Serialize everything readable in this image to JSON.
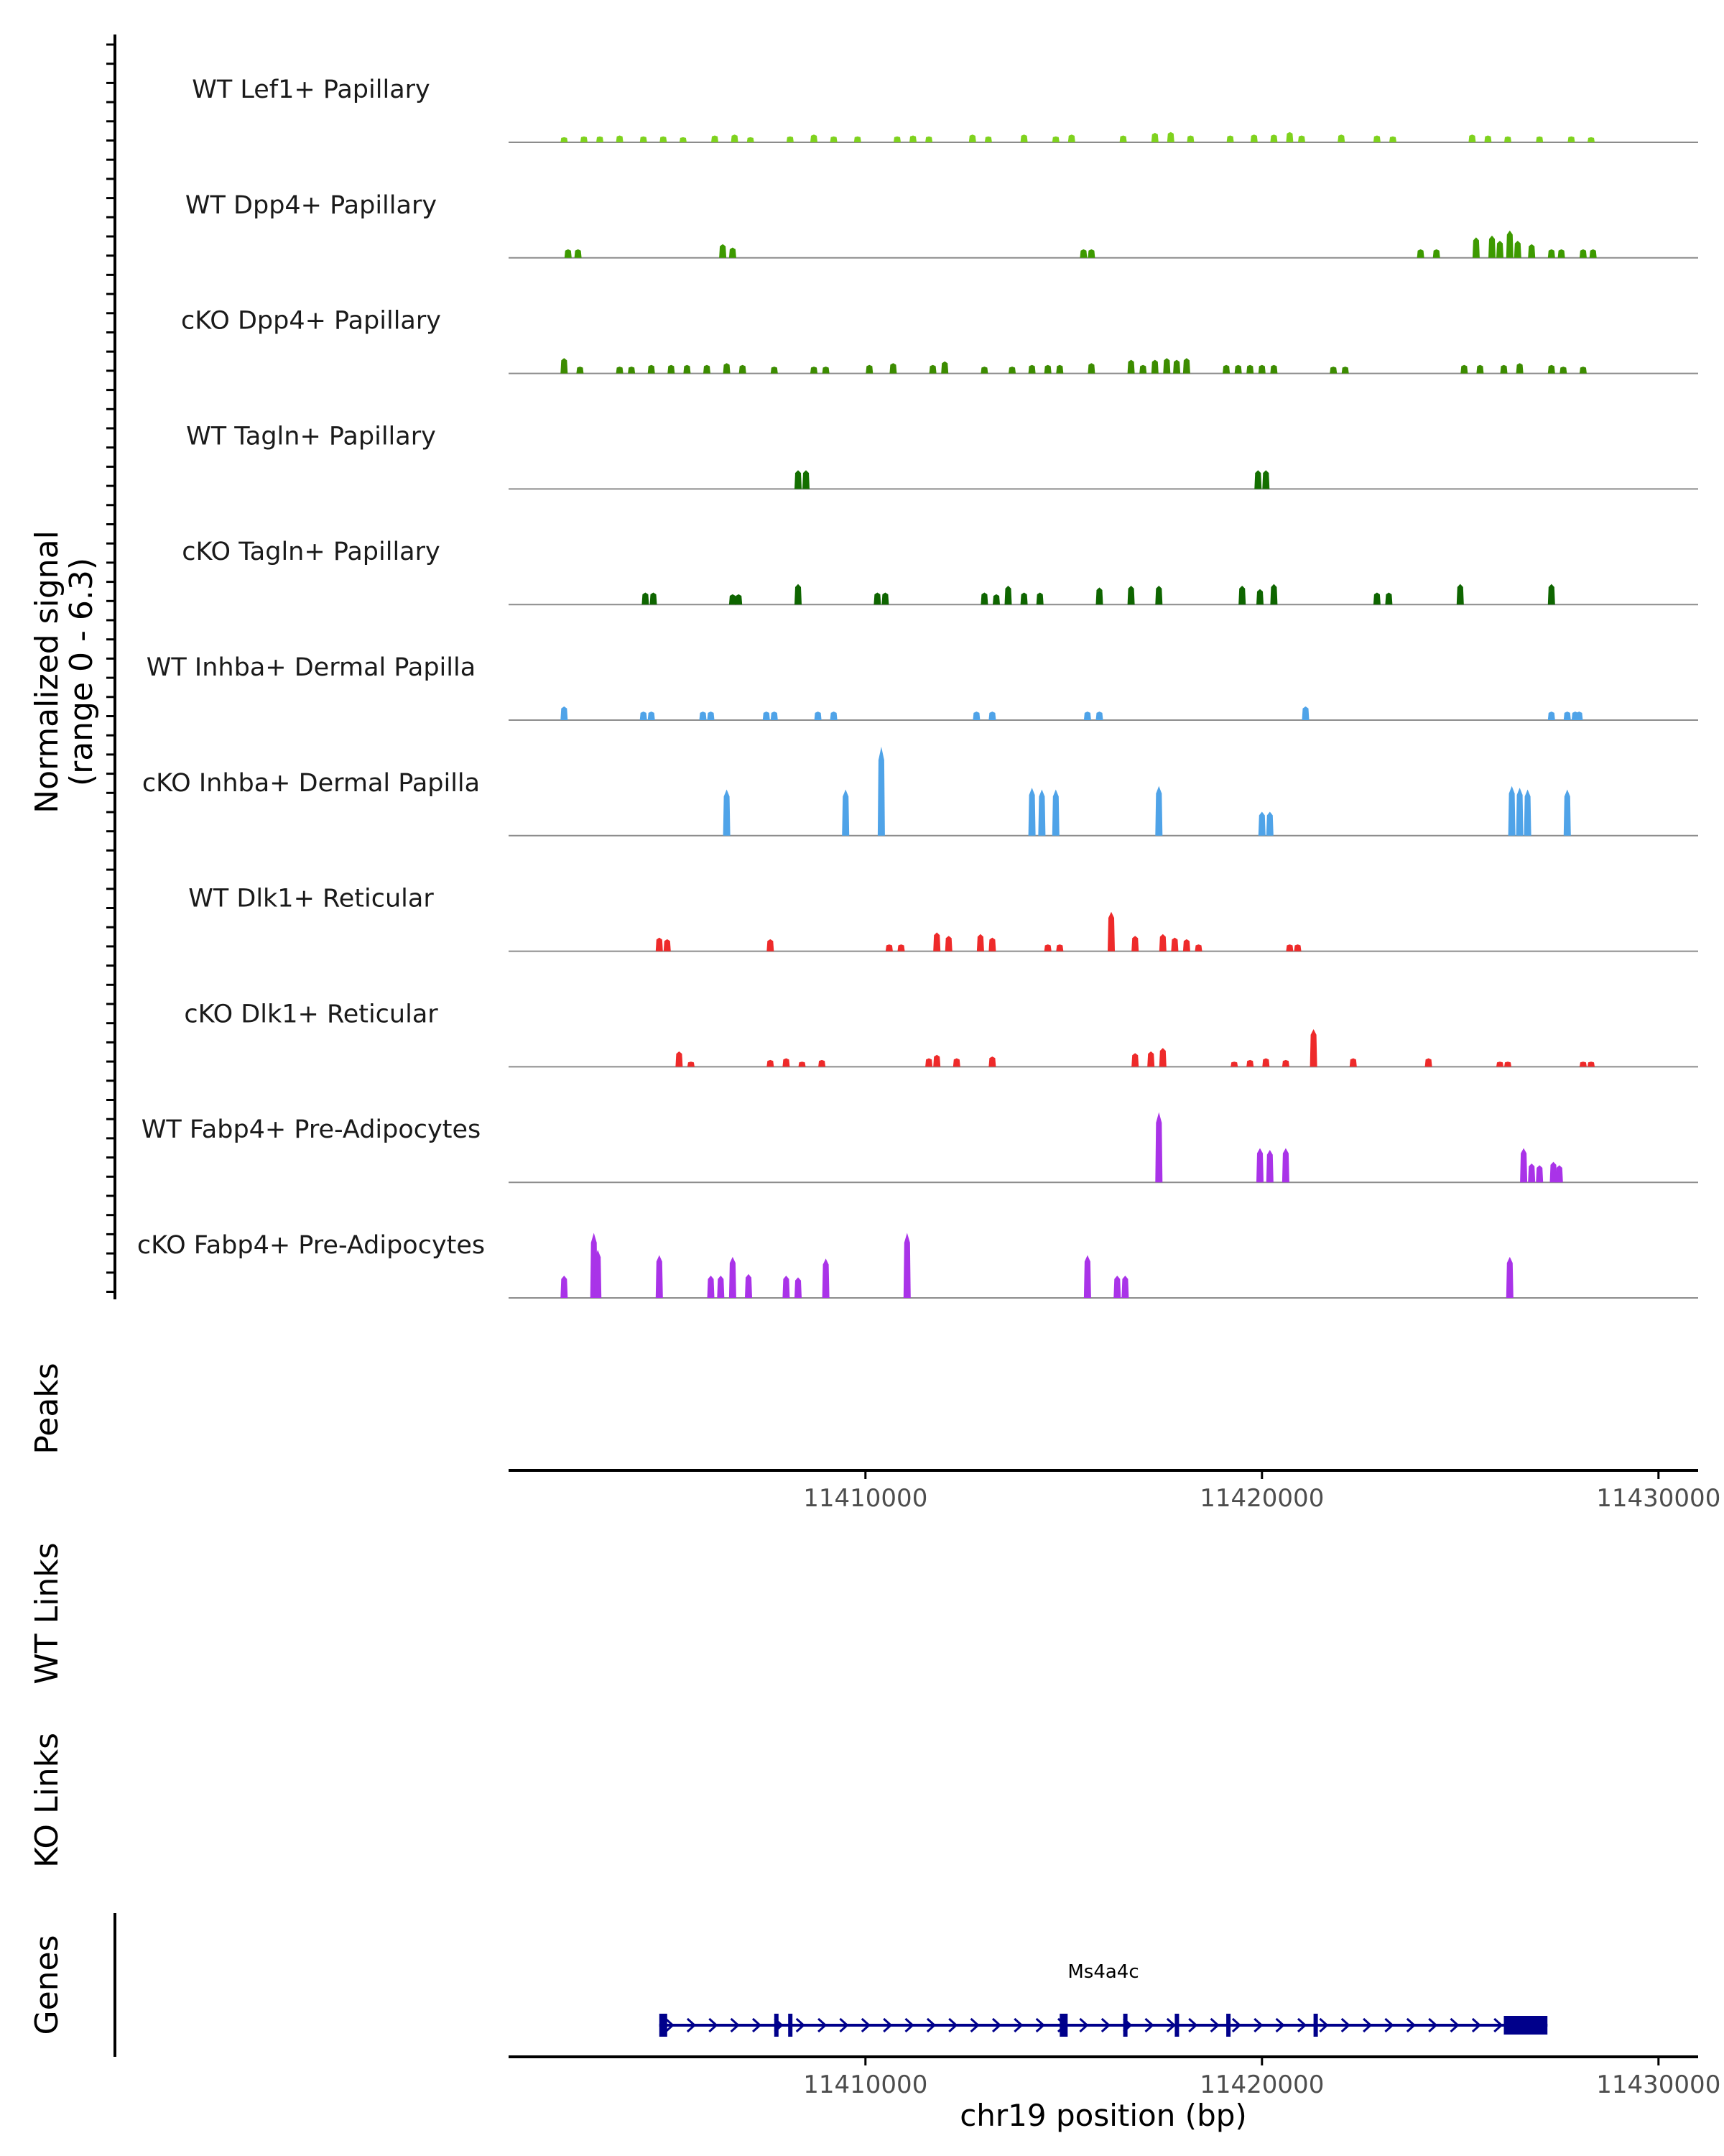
{
  "chart_data": {
    "type": "area",
    "genome": "chr19",
    "x_range": [
      11401000,
      11431000
    ],
    "y_axis_title": "Normalized signal",
    "y_axis_subtitle": "(range 0 - 6.3)",
    "y_range": [
      0,
      6.3
    ],
    "x_label": "chr19 position (bp)",
    "x_ticks": [
      11410000,
      11420000,
      11430000
    ],
    "x_tick_labels": [
      "11410000",
      "11420000",
      "11430000"
    ],
    "panel_labels": {
      "peaks": "Peaks",
      "wt_links": "WT Links",
      "ko_links": "KO Links",
      "genes": "Genes"
    },
    "tracks": [
      {
        "name": "WT Lef1+ Papillary",
        "color": "#7fd21e",
        "peaks": [
          [
            11402400,
            0.3
          ],
          [
            11402900,
            0.35
          ],
          [
            11403300,
            0.35
          ],
          [
            11403800,
            0.4
          ],
          [
            11404400,
            0.35
          ],
          [
            11404900,
            0.35
          ],
          [
            11405400,
            0.3
          ],
          [
            11406200,
            0.4
          ],
          [
            11406700,
            0.45
          ],
          [
            11407100,
            0.3
          ],
          [
            11408100,
            0.35
          ],
          [
            11408700,
            0.45
          ],
          [
            11409200,
            0.35
          ],
          [
            11409800,
            0.35
          ],
          [
            11410800,
            0.35
          ],
          [
            11411200,
            0.4
          ],
          [
            11411600,
            0.35
          ],
          [
            11412700,
            0.45
          ],
          [
            11413100,
            0.35
          ],
          [
            11414000,
            0.45
          ],
          [
            11414800,
            0.35
          ],
          [
            11415200,
            0.45
          ],
          [
            11416500,
            0.4
          ],
          [
            11417300,
            0.55
          ],
          [
            11417700,
            0.6
          ],
          [
            11418200,
            0.4
          ],
          [
            11419200,
            0.4
          ],
          [
            11419800,
            0.45
          ],
          [
            11420300,
            0.45
          ],
          [
            11420700,
            0.6
          ],
          [
            11421000,
            0.4
          ],
          [
            11422000,
            0.45
          ],
          [
            11422900,
            0.4
          ],
          [
            11423300,
            0.35
          ],
          [
            11425300,
            0.45
          ],
          [
            11425700,
            0.4
          ],
          [
            11426200,
            0.35
          ],
          [
            11427000,
            0.35
          ],
          [
            11427800,
            0.35
          ],
          [
            11428300,
            0.3
          ]
        ]
      },
      {
        "name": "WT Dpp4+ Papillary",
        "color": "#3d9a00",
        "peaks": [
          [
            11402500,
            0.5
          ],
          [
            11402750,
            0.5
          ],
          [
            11406400,
            0.8
          ],
          [
            11406650,
            0.6
          ],
          [
            11415500,
            0.5
          ],
          [
            11415700,
            0.5
          ],
          [
            11424000,
            0.5
          ],
          [
            11424400,
            0.5
          ],
          [
            11425400,
            1.2
          ],
          [
            11425800,
            1.3
          ],
          [
            11426000,
            1.0
          ],
          [
            11426250,
            1.6
          ],
          [
            11426450,
            1.0
          ],
          [
            11426800,
            0.8
          ],
          [
            11427300,
            0.5
          ],
          [
            11427550,
            0.5
          ],
          [
            11428100,
            0.5
          ],
          [
            11428350,
            0.5
          ]
        ]
      },
      {
        "name": "cKO Dpp4+ Papillary",
        "color": "#3c8c00",
        "peaks": [
          [
            11402400,
            0.9
          ],
          [
            11402800,
            0.4
          ],
          [
            11403800,
            0.4
          ],
          [
            11404100,
            0.4
          ],
          [
            11404600,
            0.5
          ],
          [
            11405100,
            0.5
          ],
          [
            11405500,
            0.5
          ],
          [
            11406000,
            0.5
          ],
          [
            11406500,
            0.6
          ],
          [
            11406900,
            0.5
          ],
          [
            11407700,
            0.4
          ],
          [
            11408700,
            0.4
          ],
          [
            11409000,
            0.4
          ],
          [
            11410100,
            0.5
          ],
          [
            11410700,
            0.6
          ],
          [
            11411700,
            0.5
          ],
          [
            11412000,
            0.7
          ],
          [
            11413000,
            0.4
          ],
          [
            11413700,
            0.4
          ],
          [
            11414200,
            0.5
          ],
          [
            11414600,
            0.5
          ],
          [
            11414900,
            0.5
          ],
          [
            11415700,
            0.6
          ],
          [
            11416700,
            0.8
          ],
          [
            11417000,
            0.5
          ],
          [
            11417300,
            0.8
          ],
          [
            11417600,
            0.9
          ],
          [
            11417850,
            0.8
          ],
          [
            11418100,
            0.9
          ],
          [
            11419100,
            0.5
          ],
          [
            11419400,
            0.5
          ],
          [
            11419700,
            0.5
          ],
          [
            11420000,
            0.5
          ],
          [
            11420300,
            0.5
          ],
          [
            11421800,
            0.4
          ],
          [
            11422100,
            0.4
          ],
          [
            11425100,
            0.5
          ],
          [
            11425500,
            0.5
          ],
          [
            11426100,
            0.5
          ],
          [
            11426500,
            0.6
          ],
          [
            11427300,
            0.5
          ],
          [
            11427600,
            0.4
          ],
          [
            11428100,
            0.4
          ]
        ]
      },
      {
        "name": "WT Tagln+ Papillary",
        "color": "#136f00",
        "peaks": [
          [
            11408300,
            1.1
          ],
          [
            11408500,
            1.1
          ],
          [
            11419900,
            1.1
          ],
          [
            11420100,
            1.1
          ]
        ]
      },
      {
        "name": "cKO Tagln+ Papillary",
        "color": "#0e6500",
        "peaks": [
          [
            11404450,
            0.7
          ],
          [
            11404650,
            0.7
          ],
          [
            11406650,
            0.6
          ],
          [
            11406800,
            0.6
          ],
          [
            11408300,
            1.2
          ],
          [
            11410300,
            0.7
          ],
          [
            11410500,
            0.7
          ],
          [
            11413000,
            0.7
          ],
          [
            11413300,
            0.6
          ],
          [
            11413600,
            1.1
          ],
          [
            11414000,
            0.7
          ],
          [
            11414400,
            0.7
          ],
          [
            11415900,
            1.0
          ],
          [
            11416700,
            1.1
          ],
          [
            11417400,
            1.1
          ],
          [
            11419500,
            1.1
          ],
          [
            11419950,
            0.9
          ],
          [
            11420300,
            1.2
          ],
          [
            11422900,
            0.7
          ],
          [
            11423200,
            0.7
          ],
          [
            11425000,
            1.2
          ],
          [
            11427300,
            1.2
          ]
        ]
      },
      {
        "name": "WT Inhba+ Dermal Papilla",
        "color": "#4fa3e8",
        "peaks": [
          [
            11402400,
            0.8
          ],
          [
            11404400,
            0.5
          ],
          [
            11404600,
            0.5
          ],
          [
            11405900,
            0.5
          ],
          [
            11406100,
            0.5
          ],
          [
            11407500,
            0.5
          ],
          [
            11407700,
            0.5
          ],
          [
            11408800,
            0.5
          ],
          [
            11409200,
            0.5
          ],
          [
            11412800,
            0.5
          ],
          [
            11413200,
            0.5
          ],
          [
            11415600,
            0.5
          ],
          [
            11415900,
            0.5
          ],
          [
            11421100,
            0.8
          ],
          [
            11427300,
            0.5
          ],
          [
            11427700,
            0.5
          ],
          [
            11427900,
            0.5
          ],
          [
            11428000,
            0.5
          ]
        ]
      },
      {
        "name": "cKO Inhba+ Dermal Papilla",
        "color": "#4fa3e8",
        "peaks": [
          [
            11406500,
            2.7
          ],
          [
            11409500,
            2.7
          ],
          [
            11410400,
            5.2
          ],
          [
            11414200,
            2.8
          ],
          [
            11414450,
            2.7
          ],
          [
            11414800,
            2.7
          ],
          [
            11417400,
            2.9
          ],
          [
            11420000,
            1.4
          ],
          [
            11420200,
            1.4
          ],
          [
            11426300,
            2.9
          ],
          [
            11426500,
            2.8
          ],
          [
            11426700,
            2.7
          ],
          [
            11427700,
            2.7
          ]
        ]
      },
      {
        "name": "WT Dlk1+ Reticular",
        "color": "#ee2a2a",
        "peaks": [
          [
            11404800,
            0.8
          ],
          [
            11405000,
            0.7
          ],
          [
            11407600,
            0.7
          ],
          [
            11410600,
            0.4
          ],
          [
            11410900,
            0.4
          ],
          [
            11411800,
            1.1
          ],
          [
            11412100,
            0.9
          ],
          [
            11412900,
            1.0
          ],
          [
            11413200,
            0.8
          ],
          [
            11414600,
            0.4
          ],
          [
            11414900,
            0.4
          ],
          [
            11416200,
            2.3
          ],
          [
            11416800,
            0.9
          ],
          [
            11417500,
            1.0
          ],
          [
            11417800,
            0.8
          ],
          [
            11418100,
            0.7
          ],
          [
            11418400,
            0.4
          ],
          [
            11420700,
            0.4
          ],
          [
            11420900,
            0.4
          ]
        ]
      },
      {
        "name": "cKO Dlk1+ Reticular",
        "color": "#ee2a2a",
        "peaks": [
          [
            11405300,
            0.9
          ],
          [
            11405600,
            0.3
          ],
          [
            11407600,
            0.4
          ],
          [
            11408000,
            0.5
          ],
          [
            11408400,
            0.3
          ],
          [
            11408900,
            0.4
          ],
          [
            11411600,
            0.5
          ],
          [
            11411800,
            0.7
          ],
          [
            11412300,
            0.5
          ],
          [
            11413200,
            0.6
          ],
          [
            11416800,
            0.8
          ],
          [
            11417200,
            0.9
          ],
          [
            11417500,
            1.1
          ],
          [
            11419300,
            0.3
          ],
          [
            11419700,
            0.4
          ],
          [
            11420100,
            0.5
          ],
          [
            11420600,
            0.4
          ],
          [
            11421300,
            2.2
          ],
          [
            11422300,
            0.5
          ],
          [
            11424200,
            0.5
          ],
          [
            11426000,
            0.3
          ],
          [
            11426200,
            0.3
          ],
          [
            11428100,
            0.3
          ],
          [
            11428300,
            0.3
          ]
        ]
      },
      {
        "name": "WT Fabp4+ Pre-Adipocytes",
        "color": "#a933e8",
        "peaks": [
          [
            11417400,
            4.1
          ],
          [
            11419950,
            2.0
          ],
          [
            11420200,
            1.9
          ],
          [
            11420600,
            2.0
          ],
          [
            11426600,
            2.0
          ],
          [
            11426800,
            1.1
          ],
          [
            11427000,
            1.0
          ],
          [
            11427350,
            1.2
          ],
          [
            11427500,
            1.0
          ]
        ]
      },
      {
        "name": "cKO Fabp4+ Pre-Adipocytes",
        "color": "#a933e8",
        "peaks": [
          [
            11402400,
            1.3
          ],
          [
            11403150,
            3.8
          ],
          [
            11403250,
            2.8
          ],
          [
            11404800,
            2.5
          ],
          [
            11406100,
            1.3
          ],
          [
            11406350,
            1.3
          ],
          [
            11406650,
            2.4
          ],
          [
            11407050,
            1.4
          ],
          [
            11408000,
            1.3
          ],
          [
            11408300,
            1.2
          ],
          [
            11409000,
            2.3
          ],
          [
            11411050,
            3.8
          ],
          [
            11415600,
            2.5
          ],
          [
            11416350,
            1.3
          ],
          [
            11416550,
            1.3
          ],
          [
            11426250,
            2.4
          ]
        ]
      }
    ],
    "gene": {
      "name": "Ms4a4c",
      "start": 11404800,
      "end": 11427200,
      "strand": "+",
      "color": "#00008b",
      "exons": [
        [
          11404800,
          11405000
        ],
        [
          11407700,
          11407800
        ],
        [
          11408050,
          11408150
        ],
        [
          11414900,
          11415100
        ],
        [
          11416500,
          11416600
        ],
        [
          11417800,
          11417850
        ],
        [
          11419100,
          11419200
        ],
        [
          11421300,
          11421400
        ],
        [
          11426100,
          11427200
        ]
      ]
    }
  }
}
